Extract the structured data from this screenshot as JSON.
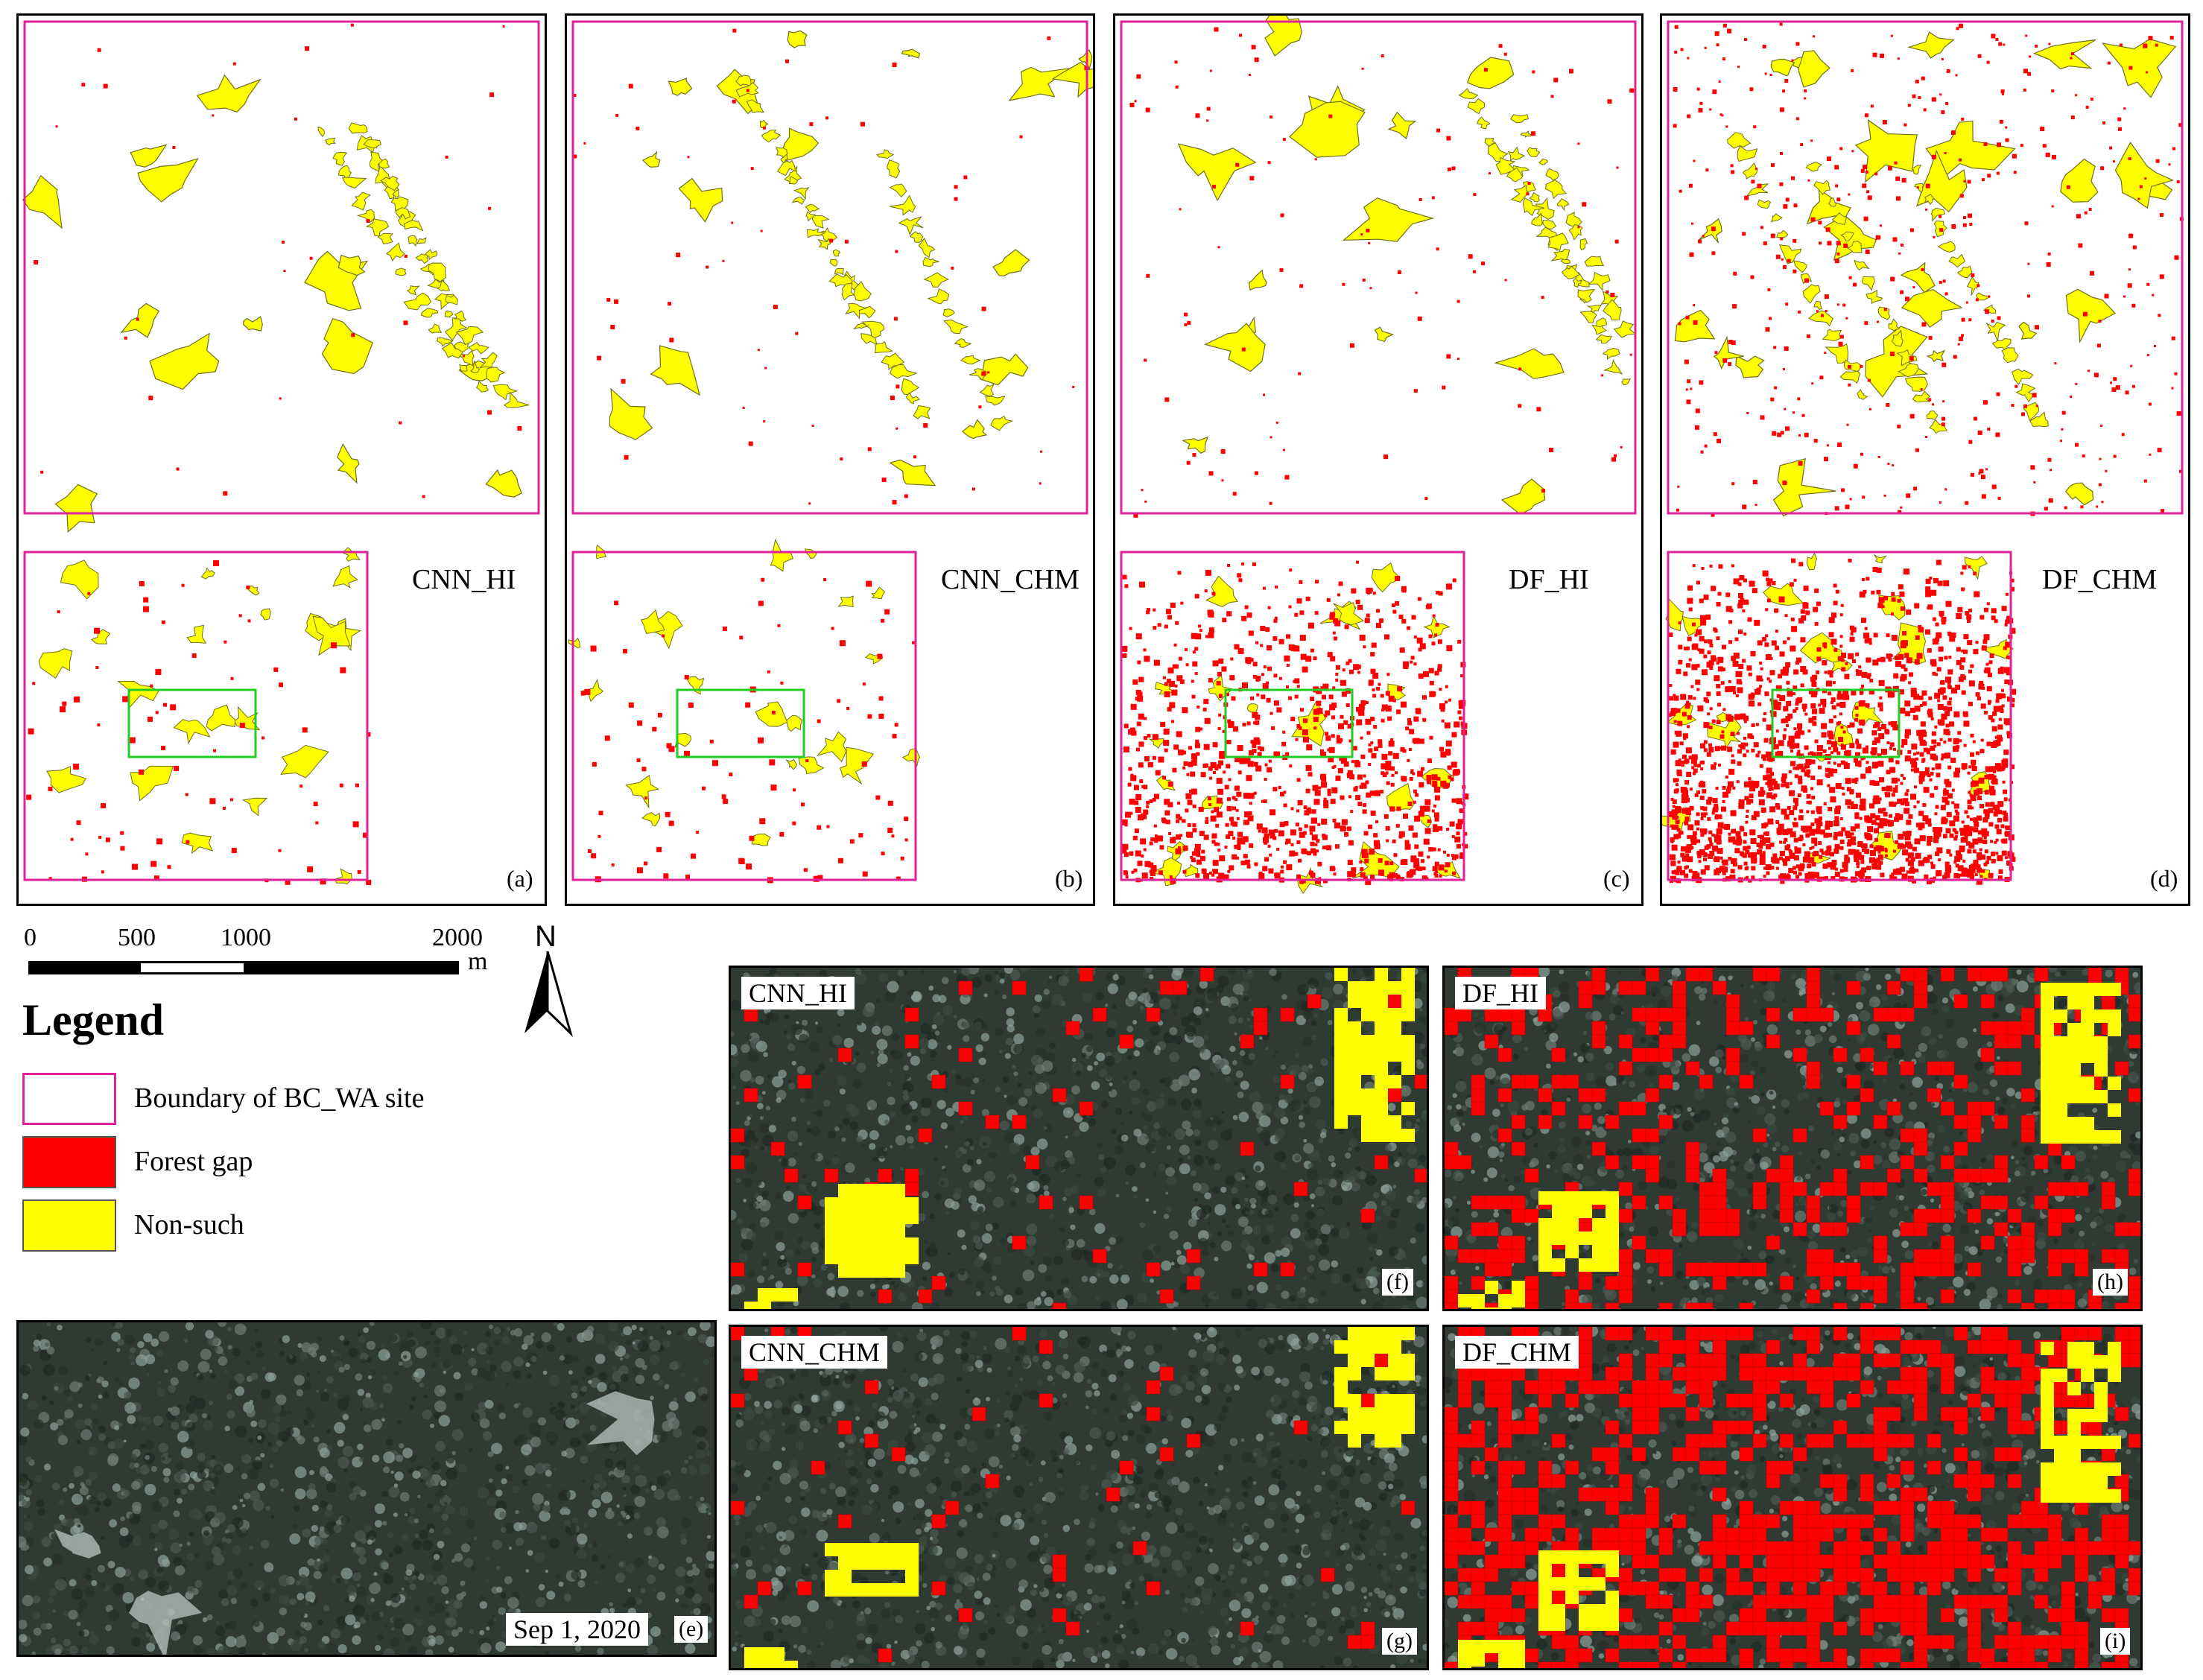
{
  "panels": [
    {
      "model": "CNN_HI",
      "letter": "(a)",
      "seed": 11,
      "gap_density": 0.0006,
      "lower_gap_density": 0.004,
      "yellow_blobs": 14
    },
    {
      "model": "CNN_CHM",
      "letter": "(b)",
      "seed": 23,
      "gap_density": 0.0012,
      "lower_gap_density": 0.005,
      "yellow_blobs": 16
    },
    {
      "model": "DF_HI",
      "letter": "(c)",
      "seed": 37,
      "gap_density": 0.002,
      "lower_gap_density": 0.05,
      "yellow_blobs": 14
    },
    {
      "model": "DF_CHM",
      "letter": "(d)",
      "seed": 53,
      "gap_density": 0.008,
      "lower_gap_density": 0.09,
      "yellow_blobs": 26
    }
  ],
  "scalebar": {
    "ticks": [
      "0",
      "500",
      "1000",
      "2000"
    ],
    "unit": "m"
  },
  "north_label": "N",
  "legend": {
    "title": "Legend",
    "items": [
      {
        "label": "Boundary of BC_WA site",
        "type": "boundary"
      },
      {
        "label": "Forest gap",
        "type": "gap"
      },
      {
        "label": "Non-such",
        "type": "nonsuch"
      }
    ]
  },
  "photo_e": {
    "date": "Sep 1, 2020",
    "letter": "(e)"
  },
  "zoom_panels": [
    {
      "model": "CNN_HI",
      "letter": "(f)",
      "seed": 71,
      "gap_density": 0.05
    },
    {
      "model": "DF_HI",
      "letter": "(h)",
      "seed": 83,
      "gap_density": 0.3
    },
    {
      "model": "CNN_CHM",
      "letter": "(g)",
      "seed": 97,
      "gap_density": 0.04
    },
    {
      "model": "DF_CHM",
      "letter": "(i)",
      "seed": 109,
      "gap_density": 0.45
    }
  ],
  "colors": {
    "boundary": "#e0229a",
    "gap": "#ff0000",
    "nonsuch": "#ffff00",
    "inset_box": "#22cc22",
    "canopy": "#2e3a32"
  }
}
